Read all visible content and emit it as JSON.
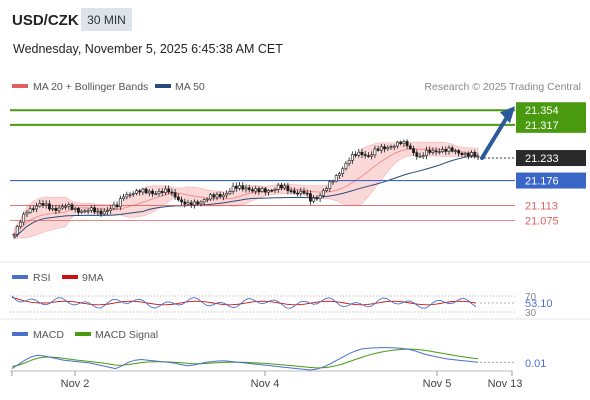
{
  "header": {
    "symbol": "USD/CZK",
    "timeframe": "30 MIN",
    "datetime": "Wednesday, November 5, 2025 6:45:38 AM CET"
  },
  "legend": {
    "bollinger": "MA 20 + Bollinger Bands",
    "ma50": "MA 50",
    "credit": "Research © 2025 Trading Central"
  },
  "colors": {
    "green": "#4a9a10",
    "blue": "#3a66c8",
    "red": "#e06060",
    "arrow": "#2a5a9a",
    "band_fill": "#fbd8d8",
    "ma20": "#f09090",
    "ma50": "#2a4a7a",
    "candle": "#1a1a1a"
  },
  "chart_data": [
    {
      "type": "candlestick",
      "x_ticks": [
        "Nov 2",
        "Nov 4",
        "Nov 5",
        "Nov 13"
      ],
      "ylim": [
        20.98,
        21.39
      ],
      "levels": [
        {
          "label": "21.354",
          "value": 21.354,
          "kind": "resistance"
        },
        {
          "label": "21.317",
          "value": 21.317,
          "kind": "resistance"
        },
        {
          "label": "21.233",
          "value": 21.233,
          "kind": "last"
        },
        {
          "label": "21.176",
          "value": 21.176,
          "kind": "pivot"
        },
        {
          "label": "21.113",
          "value": 21.113,
          "kind": "support"
        },
        {
          "label": "21.075",
          "value": 21.075,
          "kind": "support"
        }
      ],
      "arrow": {
        "from": 21.233,
        "to": 21.354
      },
      "close_path": [
        21.04,
        21.07,
        21.1,
        21.11,
        21.115,
        21.11,
        21.105,
        21.108,
        21.11,
        21.105,
        21.102,
        21.1,
        21.1,
        21.095,
        21.1,
        21.105,
        21.11,
        21.14,
        21.145,
        21.145,
        21.148,
        21.15,
        21.145,
        21.145,
        21.15,
        21.14,
        21.12,
        21.112,
        21.12,
        21.125,
        21.13,
        21.135,
        21.14,
        21.145,
        21.155,
        21.158,
        21.16,
        21.152,
        21.148,
        21.15,
        21.155,
        21.16,
        21.155,
        21.15,
        21.148,
        21.145,
        21.125,
        21.135,
        21.15,
        21.165,
        21.185,
        21.21,
        21.23,
        21.24,
        21.245,
        21.24,
        21.25,
        21.255,
        21.262,
        21.268,
        21.27,
        21.265,
        21.25,
        21.235,
        21.245,
        21.25,
        21.255,
        21.252,
        21.25,
        21.248,
        21.245,
        21.24,
        21.233
      ]
    },
    {
      "type": "line",
      "name_series": [
        "RSI",
        "9MA"
      ],
      "levels": [
        "70",
        "30"
      ],
      "last_value": "53.10"
    },
    {
      "type": "line",
      "name_series": [
        "MACD",
        "MACD Signal"
      ],
      "last_value": "0.01",
      "macd": [
        -0.8,
        -0.2,
        0.4,
        0.9,
        1.1,
        1.0,
        0.8,
        0.6,
        0.4,
        0.3,
        0.2,
        0.1,
        0.0,
        -0.2,
        -0.4,
        -0.6,
        -0.8,
        -0.4,
        0.1,
        0.4,
        0.5,
        0.4,
        0.3,
        0.2,
        0.1,
        0.0,
        -0.2,
        -0.4,
        -0.3,
        -0.1,
        0.1,
        0.2,
        0.3,
        0.3,
        0.2,
        0.1,
        0.0,
        -0.1,
        -0.2,
        -0.3,
        -0.4,
        -0.5,
        -0.6,
        -0.7,
        -0.8,
        -0.9,
        -1.0,
        -0.9,
        -0.6,
        -0.2,
        0.3,
        0.8,
        1.3,
        1.7,
        2.0,
        2.1,
        2.15,
        2.2,
        2.2,
        2.15,
        2.1,
        2.0,
        1.8,
        1.5,
        1.2,
        1.0,
        0.8,
        0.6,
        0.5,
        0.4,
        0.3,
        0.2,
        0.1
      ],
      "signal": [
        -0.5,
        -0.3,
        0.0,
        0.4,
        0.7,
        0.85,
        0.85,
        0.78,
        0.66,
        0.54,
        0.42,
        0.32,
        0.22,
        0.12,
        0.0,
        -0.14,
        -0.3,
        -0.32,
        -0.22,
        -0.08,
        0.06,
        0.14,
        0.18,
        0.18,
        0.16,
        0.12,
        0.05,
        -0.04,
        -0.1,
        -0.1,
        -0.06,
        0.0,
        0.06,
        0.11,
        0.13,
        0.12,
        0.1,
        0.06,
        0.0,
        -0.06,
        -0.13,
        -0.2,
        -0.28,
        -0.36,
        -0.45,
        -0.54,
        -0.63,
        -0.7,
        -0.68,
        -0.58,
        -0.4,
        -0.15,
        0.15,
        0.48,
        0.8,
        1.1,
        1.35,
        1.55,
        1.72,
        1.85,
        1.93,
        1.98,
        1.97,
        1.9,
        1.78,
        1.63,
        1.47,
        1.3,
        1.14,
        0.99,
        0.85,
        0.72,
        0.6
      ]
    }
  ]
}
